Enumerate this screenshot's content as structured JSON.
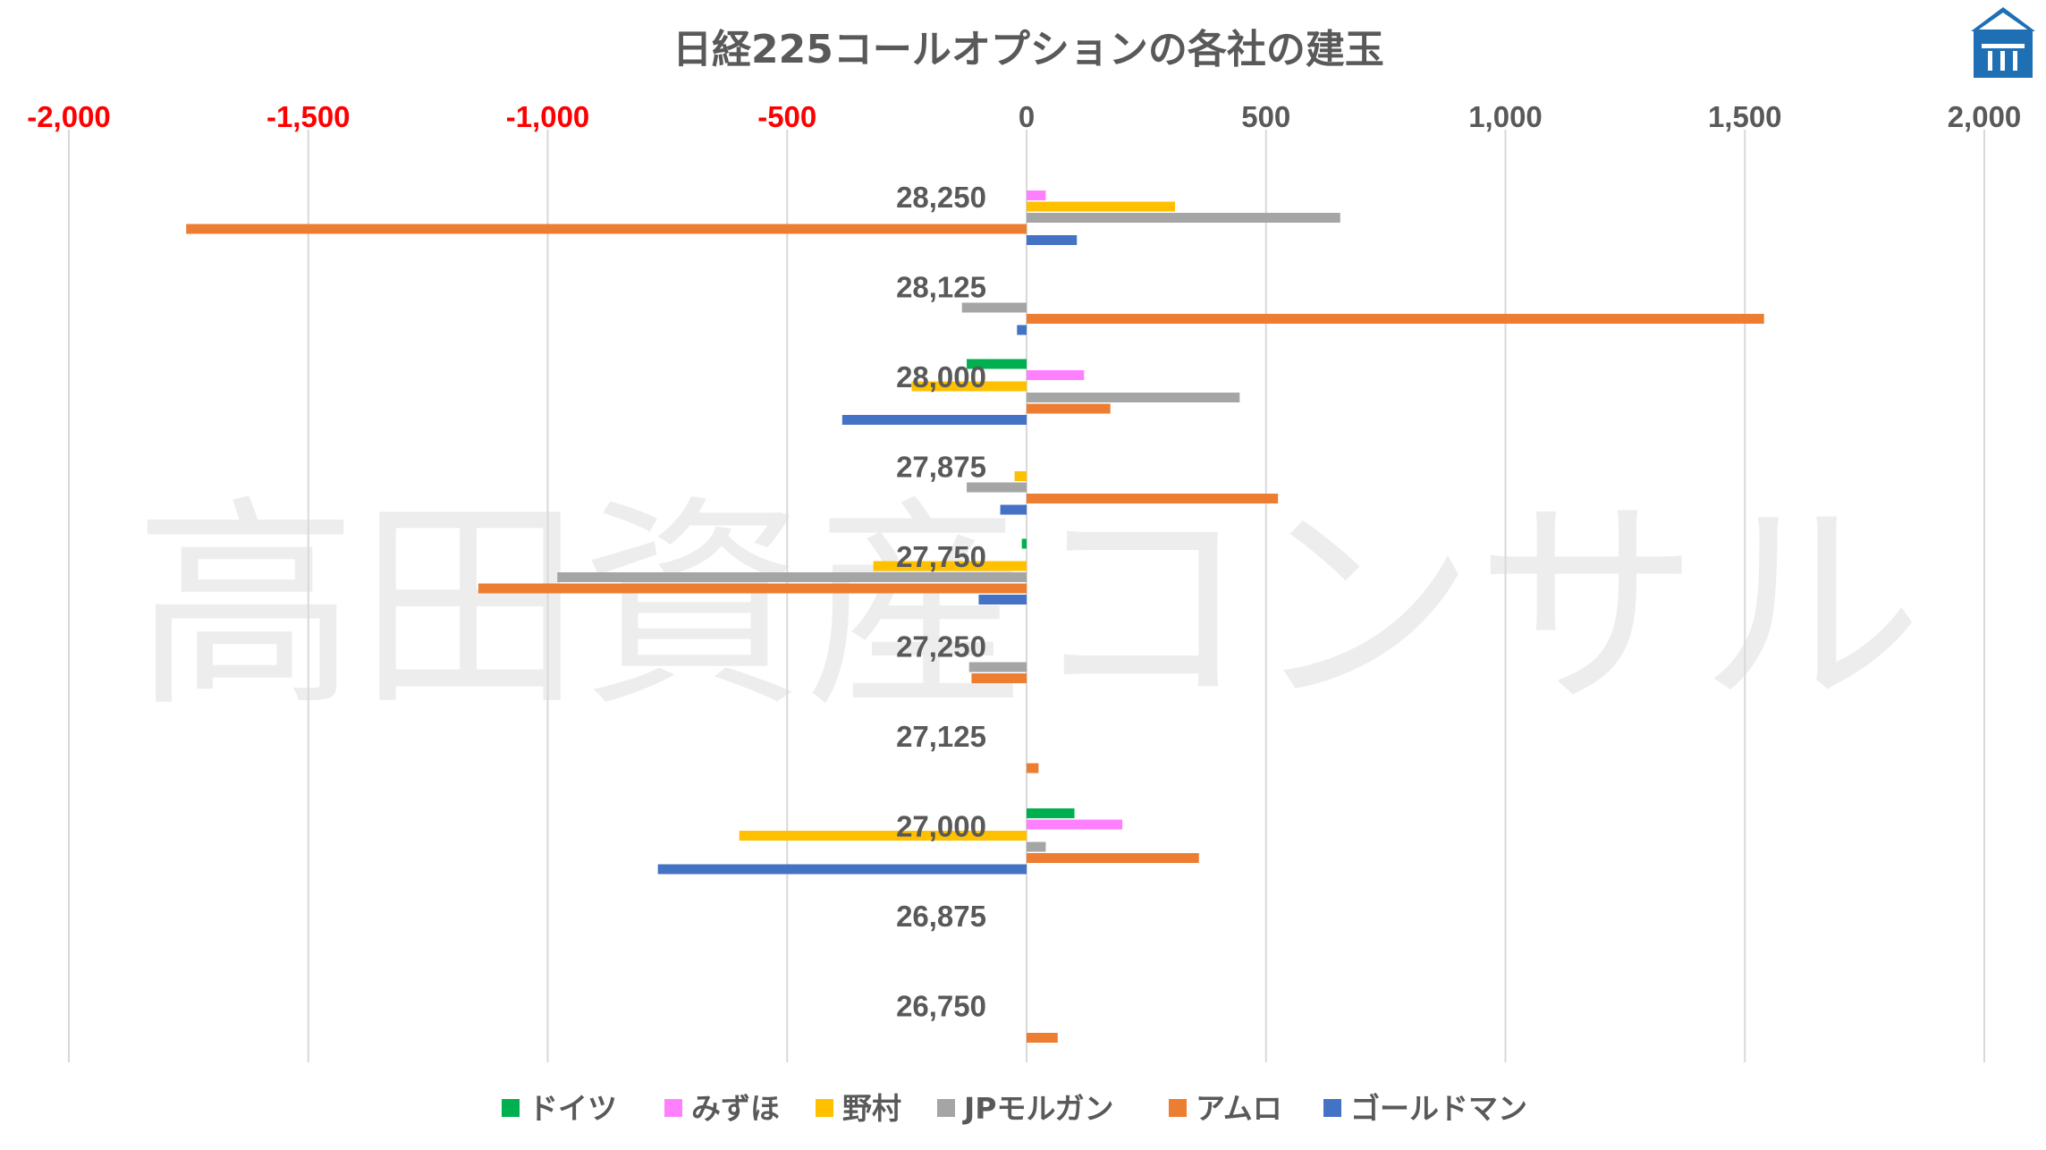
{
  "chart_data": {
    "type": "bar",
    "orientation": "horizontal",
    "title": "日経225コールオプションの各社の建玉",
    "watermark": "高田資産コンサル",
    "xlim": [
      -2000,
      2000
    ],
    "x_ticks": [
      -2000,
      -1500,
      -1000,
      -500,
      0,
      500,
      1000,
      1500,
      2000
    ],
    "x_tick_labels": [
      "-2,000",
      "-1,500",
      "-1,000",
      "-500",
      "0",
      "500",
      "1,000",
      "1,500",
      "2,000"
    ],
    "negative_tick_color": "#ff0000",
    "positive_tick_color": "#595959",
    "grid": "vertical",
    "legend_position": "bottom",
    "categories": [
      "28,250",
      "28,125",
      "28,000",
      "27,875",
      "27,750",
      "27,250",
      "27,125",
      "27,000",
      "26,875",
      "26,750"
    ],
    "series": [
      {
        "name": "ドイツ",
        "color": "#00b050",
        "values": [
          0,
          0,
          -125,
          0,
          -10,
          0,
          0,
          100,
          0,
          0
        ]
      },
      {
        "name": "みずほ",
        "color": "#ff80ff",
        "values": [
          40,
          0,
          120,
          0,
          0,
          0,
          0,
          200,
          0,
          0
        ]
      },
      {
        "name": "野村",
        "color": "#ffc000",
        "values": [
          310,
          0,
          -240,
          -25,
          -320,
          0,
          0,
          -600,
          0,
          0
        ]
      },
      {
        "name": "JPモルガン",
        "color": "#a5a5a5",
        "values": [
          655,
          -135,
          445,
          -125,
          -980,
          -120,
          0,
          40,
          0,
          0
        ]
      },
      {
        "name": "アムロ",
        "color": "#ed7d31",
        "values": [
          -1755,
          1540,
          175,
          525,
          -1145,
          -115,
          25,
          360,
          0,
          65
        ]
      },
      {
        "name": "ゴールドマン",
        "color": "#4472c4",
        "values": [
          105,
          -20,
          -385,
          -55,
          -100,
          0,
          0,
          -770,
          0,
          0
        ]
      }
    ]
  },
  "logo": {
    "name": "takata-shisan-logo",
    "color": "#1f6fb5"
  }
}
